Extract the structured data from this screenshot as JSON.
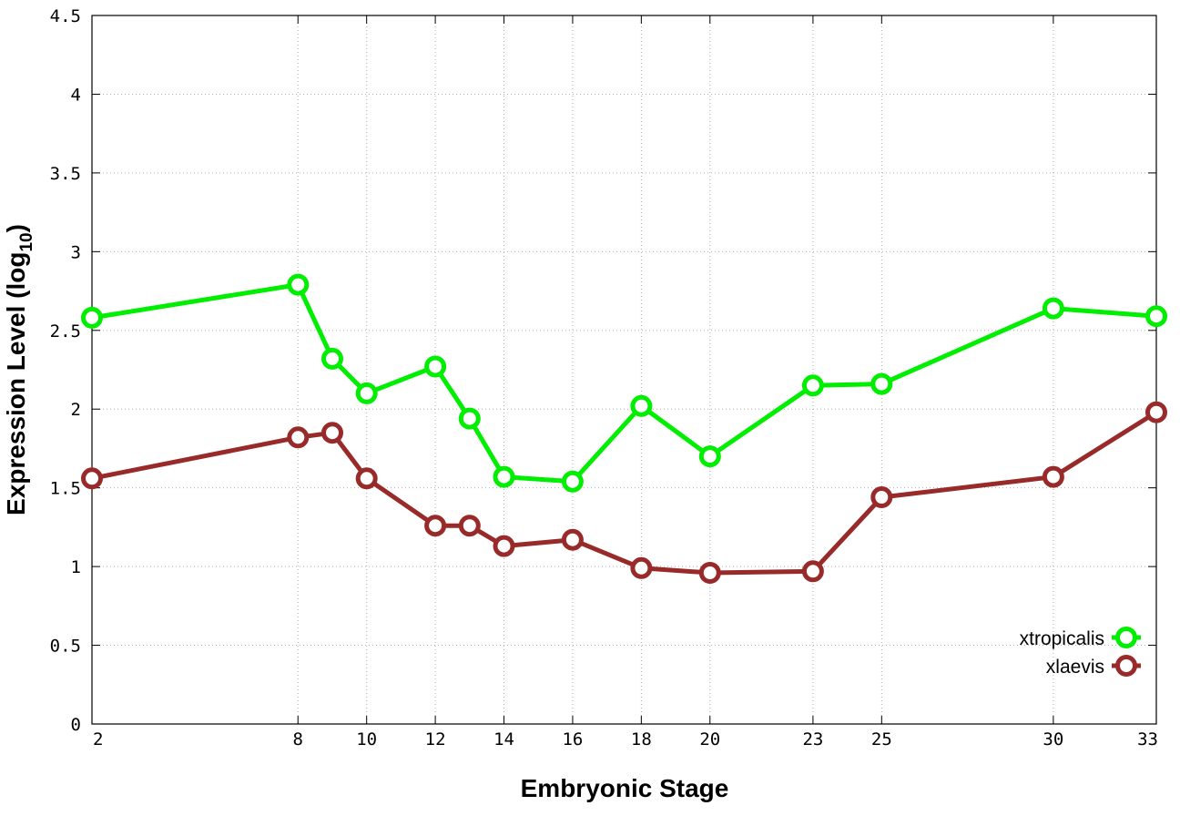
{
  "chart_data": {
    "type": "line",
    "xlabel": "Embryonic Stage",
    "ylabel": "Expression Level (log",
    "ylabel_sub": "10",
    "ylabel_close": ")",
    "x": [
      2,
      8,
      9,
      10,
      12,
      13,
      14,
      16,
      18,
      20,
      23,
      25,
      30,
      33
    ],
    "x_ticks": [
      "2",
      "8",
      "10",
      "12",
      "14",
      "16",
      "18",
      "20",
      "23",
      "25",
      "30",
      "33"
    ],
    "x_tick_values": [
      2,
      8,
      10,
      12,
      14,
      16,
      18,
      20,
      23,
      25,
      30,
      33
    ],
    "y_ticks": [
      "0",
      "0.5",
      "1",
      "1.5",
      "2",
      "2.5",
      "3",
      "3.5",
      "4",
      "4.5"
    ],
    "y_tick_values": [
      0,
      0.5,
      1,
      1.5,
      2,
      2.5,
      3,
      3.5,
      4,
      4.5
    ],
    "xlim": [
      2,
      33
    ],
    "ylim": [
      0,
      4.5
    ],
    "grid": true,
    "legend_position": "bottom-right",
    "series": [
      {
        "name": "xtropicalis",
        "color": "#00ee00",
        "values": [
          2.58,
          2.79,
          2.32,
          2.1,
          2.27,
          1.94,
          1.57,
          1.54,
          2.02,
          1.7,
          2.15,
          2.16,
          2.64,
          2.59
        ]
      },
      {
        "name": "xlaevis",
        "color": "#992a2a",
        "values": [
          1.56,
          1.82,
          1.85,
          1.56,
          1.26,
          1.26,
          1.13,
          1.17,
          0.99,
          0.96,
          0.97,
          1.44,
          1.57,
          1.98
        ]
      }
    ]
  }
}
